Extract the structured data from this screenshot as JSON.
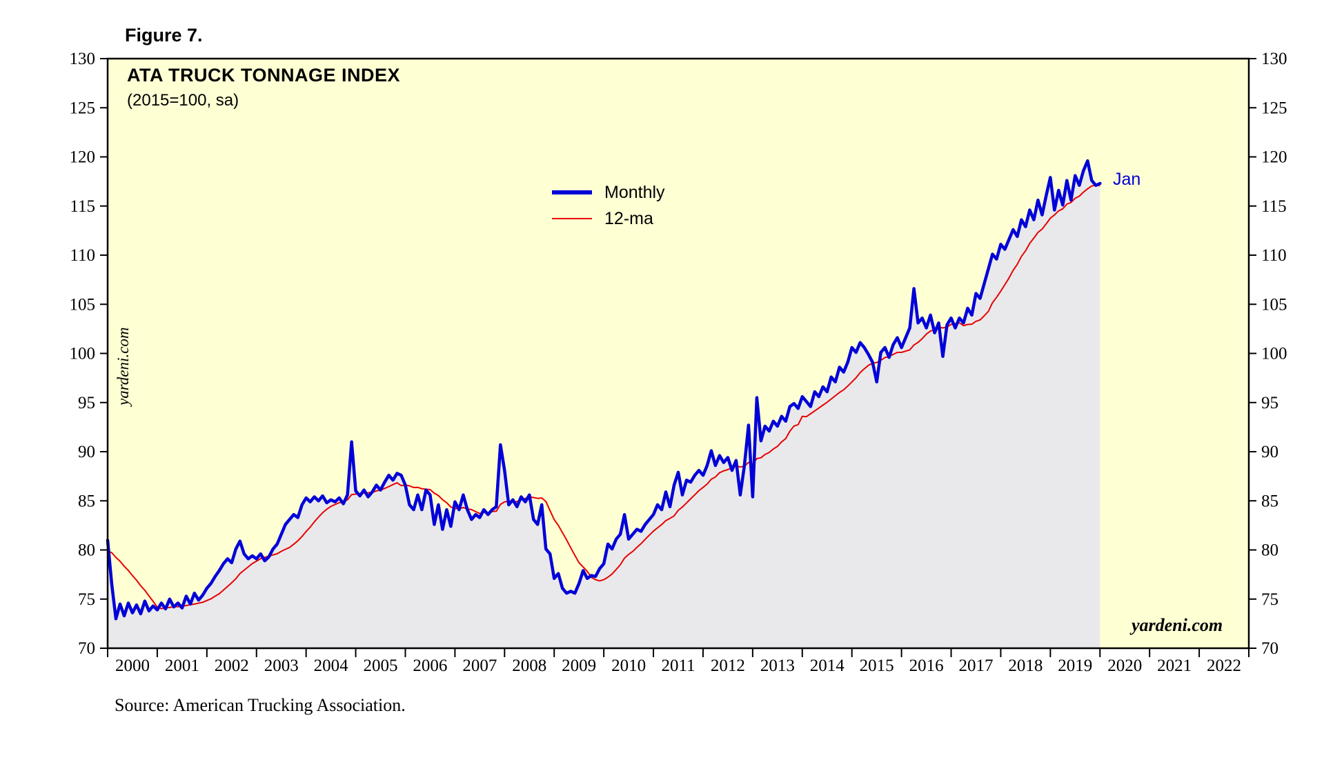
{
  "figure": {
    "label": "Figure 7.",
    "source": "Source: American Trucking Association."
  },
  "chart": {
    "title": "ATA TRUCK TONNAGE INDEX",
    "subtitle": "(2015=100, sa)",
    "legend": [
      {
        "label": "Monthly",
        "color": "#0000D8"
      },
      {
        "label": "12-ma",
        "color": "#E80000"
      }
    ],
    "last_point_label": "Jan",
    "watermark": "yardeni.com",
    "colors": {
      "plot_bg": "#FFFFD4",
      "area_fill": "#E9E9EB",
      "border": "#000000",
      "monthly": "#0000D8",
      "ma": "#E80000",
      "label_blue": "#0000D8",
      "tick_text": "#000000"
    }
  },
  "chart_data": {
    "type": "line",
    "title": "ATA TRUCK TONNAGE INDEX",
    "subtitle": "(2015=100, sa)",
    "frequency": "monthly",
    "x_start": "2000-01",
    "x_end": "2020-01",
    "x_axis_range": [
      2000,
      2023
    ],
    "ylim": [
      70,
      130
    ],
    "grid": false,
    "legend_position": "upper center",
    "y_ticks": [
      70,
      75,
      80,
      85,
      90,
      95,
      100,
      105,
      110,
      115,
      120,
      125,
      130
    ],
    "x_tick_labels": [
      "2000",
      "2001",
      "2002",
      "2003",
      "2004",
      "2005",
      "2006",
      "2007",
      "2008",
      "2009",
      "2010",
      "2011",
      "2012",
      "2013",
      "2014",
      "2015",
      "2016",
      "2017",
      "2018",
      "2019",
      "2020",
      "2021",
      "2022"
    ],
    "series": [
      {
        "name": "Monthly",
        "color": "#0000D8",
        "values": [
          81.0,
          76.5,
          73.0,
          74.5,
          73.3,
          74.6,
          73.6,
          74.4,
          73.5,
          74.8,
          73.8,
          74.3,
          73.9,
          74.6,
          74.0,
          75.0,
          74.2,
          74.6,
          74.1,
          75.3,
          74.5,
          75.6,
          74.9,
          75.4,
          76.1,
          76.6,
          77.3,
          77.9,
          78.6,
          79.1,
          78.7,
          80.1,
          80.9,
          79.6,
          79.1,
          79.4,
          79.1,
          79.6,
          78.9,
          79.3,
          80.1,
          80.6,
          81.6,
          82.6,
          83.1,
          83.6,
          83.3,
          84.6,
          85.3,
          84.9,
          85.4,
          85.0,
          85.5,
          84.8,
          85.1,
          84.9,
          85.3,
          84.7,
          85.6,
          91.0,
          86.0,
          85.5,
          86.1,
          85.4,
          85.9,
          86.6,
          86.1,
          86.9,
          87.6,
          87.1,
          87.8,
          87.6,
          86.6,
          84.6,
          84.1,
          85.6,
          84.1,
          86.1,
          85.6,
          82.6,
          84.6,
          82.1,
          84.1,
          82.4,
          84.9,
          84.1,
          85.6,
          84.1,
          83.1,
          83.6,
          83.3,
          84.1,
          83.6,
          84.1,
          84.4,
          90.7,
          88.1,
          84.6,
          85.1,
          84.4,
          85.4,
          84.9,
          85.6,
          83.1,
          82.6,
          84.6,
          80.1,
          79.6,
          77.1,
          77.6,
          76.1,
          75.6,
          75.8,
          75.6,
          76.6,
          77.9,
          77.1,
          77.4,
          77.3,
          78.1,
          78.6,
          80.6,
          80.1,
          81.1,
          81.6,
          83.6,
          81.1,
          81.6,
          82.1,
          81.9,
          82.6,
          83.1,
          83.6,
          84.6,
          84.1,
          85.9,
          84.4,
          86.6,
          87.9,
          85.6,
          87.1,
          86.9,
          87.6,
          88.1,
          87.6,
          88.6,
          90.1,
          88.6,
          89.6,
          88.9,
          89.4,
          88.1,
          89.1,
          85.6,
          88.6,
          92.7,
          85.4,
          95.5,
          91.1,
          92.6,
          92.1,
          93.1,
          92.6,
          93.6,
          93.1,
          94.6,
          94.9,
          94.4,
          95.6,
          95.1,
          94.6,
          96.1,
          95.6,
          96.6,
          96.1,
          97.6,
          97.1,
          98.6,
          98.1,
          99.1,
          100.6,
          100.1,
          101.1,
          100.6,
          99.9,
          99.1,
          97.1,
          100.1,
          100.6,
          99.6,
          100.9,
          101.6,
          100.6,
          101.6,
          102.6,
          106.6,
          103.1,
          103.6,
          102.6,
          103.9,
          102.1,
          103.1,
          99.7,
          102.9,
          103.6,
          102.6,
          103.6,
          103.1,
          104.6,
          103.9,
          106.1,
          105.6,
          107.1,
          108.6,
          110.1,
          109.6,
          111.1,
          110.6,
          111.6,
          112.6,
          111.9,
          113.6,
          112.9,
          114.6,
          113.6,
          115.6,
          114.1,
          116.1,
          117.9,
          114.6,
          116.6,
          115.1,
          117.6,
          115.6,
          118.1,
          117.1,
          118.6,
          119.6,
          117.6,
          117.1,
          117.3
        ]
      },
      {
        "name": "12-ma",
        "color": "#E80000",
        "derivation": "12-month trailing moving average of Monthly series",
        "seed_prior_year": [
          77.9,
          78.3,
          78.8,
          79.1,
          79.4,
          79.7,
          79.9,
          80.1,
          80.2,
          80.4,
          80.6,
          80.9
        ]
      }
    ]
  }
}
